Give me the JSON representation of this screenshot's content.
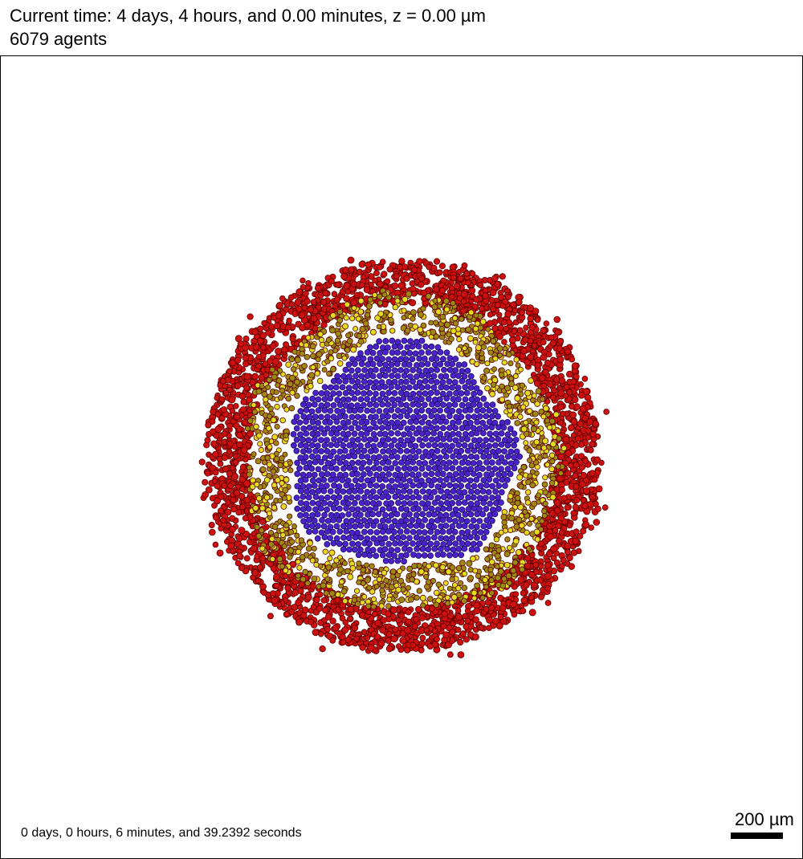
{
  "header": {
    "time_line": "Current time: 4 days, 4 hours, and 0.00 minutes, z = 0.00 µm",
    "agents_line": "6079 agents"
  },
  "footer": {
    "elapsed": "0 days, 0 hours, 6 minutes, and 39.2392 seconds",
    "scale_label": "200 µm"
  },
  "colors": {
    "core_fill": "#4b22c8",
    "core_stroke": "#1a0a66",
    "middle_fill": "#9a8a10",
    "middle_highlight": "#e0dc20",
    "outer_fill": "#cc1010",
    "outer_stroke": "#5a0000",
    "frame": "#000000",
    "background": "#ffffff"
  }
}
